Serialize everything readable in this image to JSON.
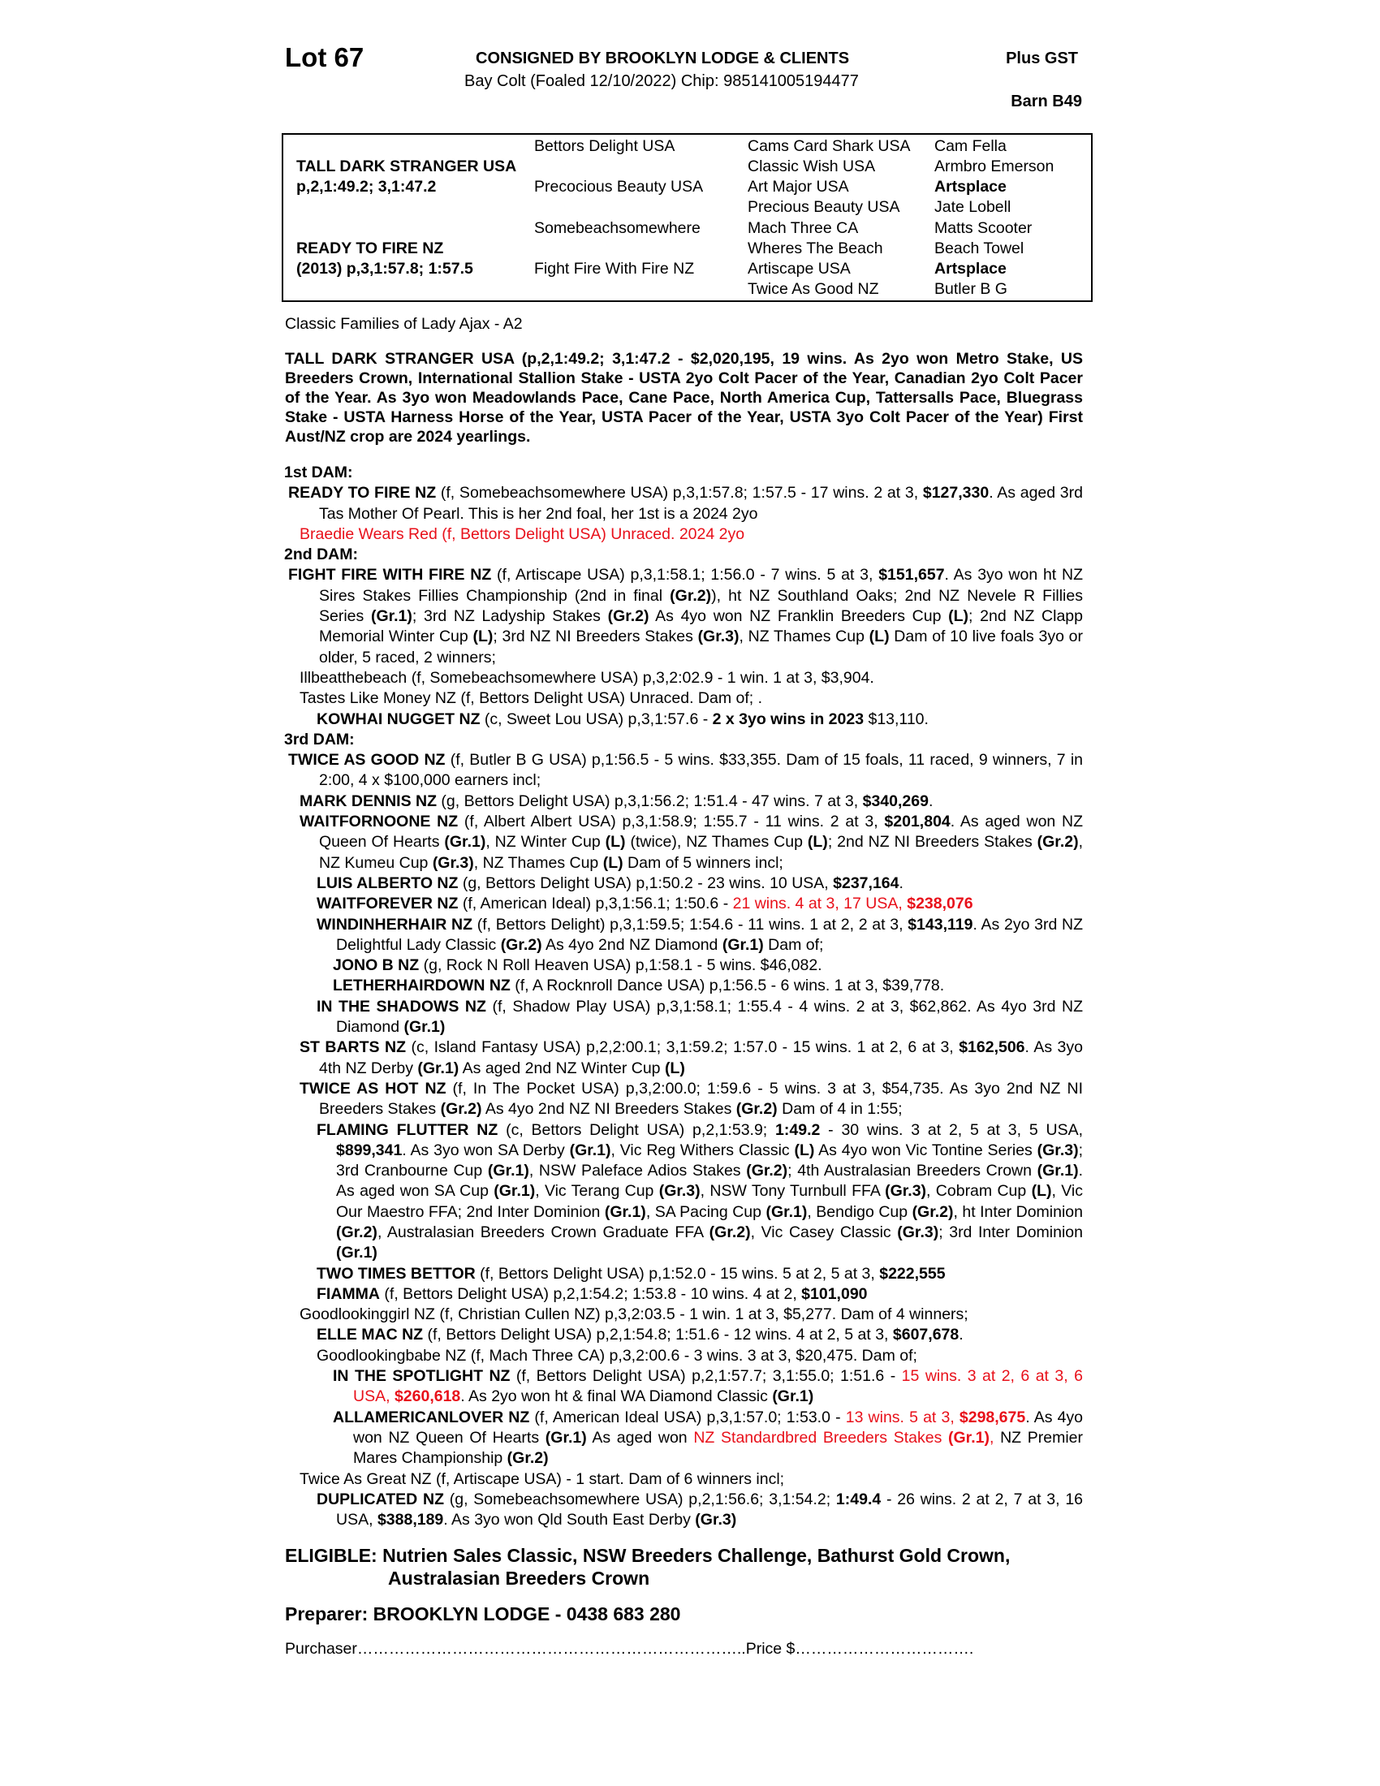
{
  "header": {
    "lot": "Lot 67",
    "consigned": "CONSIGNED BY BROOKLYN LODGE & CLIENTS",
    "plus_gst": "Plus GST",
    "description": "Bay Colt (Foaled  12/10/2022) Chip: 985141005194477",
    "barn": "Barn B49"
  },
  "pedigree": {
    "sire": "TALL DARK STRANGER USA",
    "sire_record": "p,2,1:49.2; 3,1:47.2",
    "dam": "READY TO FIRE NZ",
    "dam_record": "(2013) p,3,1:57.8; 1:57.5",
    "col2": [
      "Bettors Delight USA",
      "Precocious Beauty USA",
      "Somebeachsomewhere",
      "Fight Fire With Fire NZ"
    ],
    "col3": [
      "Cams Card Shark USA",
      "Classic Wish USA",
      "Art Major USA",
      "Precious Beauty USA",
      "Mach Three CA",
      "Wheres The Beach",
      "Artiscape USA",
      "Twice As Good NZ"
    ],
    "col4": [
      "Cam Fella",
      "Armbro Emerson",
      "Artsplace",
      "Jate Lobell",
      "Matts Scooter",
      "Beach Towel",
      "Artsplace",
      "Butler B G"
    ]
  },
  "family": "Classic Families of Lady Ajax - A2",
  "sire_paragraph": "TALL DARK STRANGER USA (p,2,1:49.2; 3,1:47.2 - $2,020,195, 19 wins. As 2yo won Metro Stake, US Breeders Crown, International Stallion Stake - USTA 2yo Colt Pacer of the Year, Canadian 2yo Colt Pacer of the Year. As 3yo won Meadowlands Pace, Cane Pace, North America Cup, Tattersalls Pace, Bluegrass Stake - USTA Harness Horse of the Year, USTA Pacer of the Year, USTA 3yo Colt Pacer of the Year) First Aust/NZ crop are 2024 yearlings.",
  "colors": {
    "highlight": "#e8101a",
    "text": "#000000"
  },
  "sections": [
    {
      "title": "1st DAM:",
      "entries": [
        {
          "level": "a",
          "segs": [
            [
              "READY TO FIRE NZ",
              "b"
            ],
            [
              " (f, Somebeachsomewhere USA) p,3,1:57.8; 1:57.5 - 17 wins. 2 at 3, ",
              ""
            ],
            [
              "$127,330",
              "b"
            ],
            [
              ". As aged 3rd Tas Mother Of Pearl. This is her 2nd foal, her 1st is a 2024 2yo",
              ""
            ]
          ]
        },
        {
          "level": "b",
          "segs": [
            [
              "Braedie Wears Red (f, Bettors Delight USA) Unraced. 2024 2yo",
              "r"
            ]
          ]
        }
      ]
    },
    {
      "title": "2nd DAM:",
      "entries": [
        {
          "level": "a",
          "segs": [
            [
              "FIGHT FIRE WITH FIRE NZ",
              "b"
            ],
            [
              " (f, Artiscape USA) p,3,1:58.1; 1:56.0 - 7 wins. 5 at 3, ",
              ""
            ],
            [
              "$151,657",
              "b"
            ],
            [
              ". As 3yo won ht NZ Sires Stakes Fillies Championship (2nd in final ",
              ""
            ],
            [
              "(Gr.2)",
              "b"
            ],
            [
              "), ht NZ Southland Oaks; 2nd NZ Nevele R Fillies Series ",
              ""
            ],
            [
              "(Gr.1)",
              "b"
            ],
            [
              "; 3rd NZ Ladyship Stakes ",
              ""
            ],
            [
              "(Gr.2)",
              "b"
            ],
            [
              " As 4yo won NZ Franklin Breeders Cup ",
              ""
            ],
            [
              "(L)",
              "b"
            ],
            [
              "; 2nd NZ Clapp Memorial Winter Cup ",
              ""
            ],
            [
              "(L)",
              "b"
            ],
            [
              "; 3rd NZ NI Breeders Stakes ",
              ""
            ],
            [
              "(Gr.3)",
              "b"
            ],
            [
              ", NZ Thames Cup ",
              ""
            ],
            [
              "(L)",
              "b"
            ],
            [
              " Dam of 10 live foals 3yo or older, 5 raced, 2 winners;",
              ""
            ]
          ]
        },
        {
          "level": "b",
          "segs": [
            [
              "Illbeatthebeach (f, Somebeachsomewhere USA) p,3,2:02.9 - 1 win. 1 at 3, $3,904.",
              ""
            ]
          ]
        },
        {
          "level": "b",
          "segs": [
            [
              "Tastes Like Money NZ (f, Bettors Delight USA) Unraced. Dam of; .",
              ""
            ]
          ]
        },
        {
          "level": "c",
          "segs": [
            [
              "KOWHAI NUGGET NZ",
              "b"
            ],
            [
              " (c, Sweet Lou USA) p,3,1:57.6 - ",
              ""
            ],
            [
              "2 x 3yo wins in 2023",
              "b"
            ],
            [
              " $13,110.",
              ""
            ]
          ]
        }
      ]
    },
    {
      "title": "3rd DAM:",
      "entries": [
        {
          "level": "a",
          "segs": [
            [
              "TWICE AS GOOD NZ",
              "b"
            ],
            [
              " (f, Butler B G USA) p,1:56.5 - 5 wins. $33,355. Dam of 15 foals, 11 raced, 9 winners, 7 in 2:00, 4 x $100,000 earners incl;",
              ""
            ]
          ]
        },
        {
          "level": "b",
          "segs": [
            [
              "MARK DENNIS NZ",
              "b"
            ],
            [
              " (g, Bettors Delight USA) p,3,1:56.2; 1:51.4 - 47 wins. 7 at 3, ",
              ""
            ],
            [
              "$340,269",
              "b"
            ],
            [
              ".",
              ""
            ]
          ]
        },
        {
          "level": "b",
          "segs": [
            [
              "WAITFORNOONE NZ",
              "b"
            ],
            [
              " (f, Albert Albert USA) p,3,1:58.9; 1:55.7 - 11 wins. 2 at 3, ",
              ""
            ],
            [
              "$201,804",
              "b"
            ],
            [
              ". As aged won NZ Queen Of Hearts ",
              ""
            ],
            [
              "(Gr.1)",
              "b"
            ],
            [
              ", NZ Winter Cup ",
              ""
            ],
            [
              "(L)",
              "b"
            ],
            [
              " (twice), NZ Thames Cup ",
              ""
            ],
            [
              "(L)",
              "b"
            ],
            [
              "; 2nd NZ NI Breeders Stakes ",
              ""
            ],
            [
              "(Gr.2)",
              "b"
            ],
            [
              ", NZ Kumeu Cup ",
              ""
            ],
            [
              "(Gr.3)",
              "b"
            ],
            [
              ", NZ Thames Cup ",
              ""
            ],
            [
              "(L)",
              "b"
            ],
            [
              " Dam of 5 winners incl;",
              ""
            ]
          ]
        },
        {
          "level": "c",
          "segs": [
            [
              "LUIS ALBERTO NZ",
              "b"
            ],
            [
              " (g, Bettors Delight USA) p,1:50.2 - 23 wins. 10 USA, ",
              ""
            ],
            [
              "$237,164",
              "b"
            ],
            [
              ".",
              ""
            ]
          ]
        },
        {
          "level": "c",
          "segs": [
            [
              "WAITFOREVER NZ",
              "b"
            ],
            [
              " (f, American Ideal) p,3,1:56.1; 1:50.6 - ",
              ""
            ],
            [
              "21 wins. 4 at 3, 17 USA, ",
              "r"
            ],
            [
              "$238,076",
              "rb"
            ]
          ]
        },
        {
          "level": "c",
          "segs": [
            [
              "WINDINHERHAIR NZ",
              "b"
            ],
            [
              " (f, Bettors Delight) p,3,1:59.5; 1:54.6 - 11 wins. 1 at 2, 2 at 3, ",
              ""
            ],
            [
              "$143,119",
              "b"
            ],
            [
              ". As 2yo 3rd NZ Delightful Lady Classic ",
              ""
            ],
            [
              "(Gr.2)",
              "b"
            ],
            [
              " As 4yo 2nd NZ Diamond ",
              ""
            ],
            [
              "(Gr.1)",
              "b"
            ],
            [
              " Dam of;",
              ""
            ]
          ]
        },
        {
          "level": "d",
          "segs": [
            [
              "JONO B NZ",
              "b"
            ],
            [
              " (g, Rock N Roll Heaven USA) p,1:58.1 - 5 wins. $46,082.",
              ""
            ]
          ]
        },
        {
          "level": "d",
          "segs": [
            [
              "LETHERHAIRDOWN NZ",
              "b"
            ],
            [
              " (f, A Rocknroll Dance USA) p,1:56.5 - 6 wins. 1 at 3, $39,778.",
              ""
            ]
          ]
        },
        {
          "level": "c",
          "segs": [
            [
              "IN THE SHADOWS NZ",
              "b"
            ],
            [
              " (f, Shadow Play USA) p,3,1:58.1; 1:55.4 - 4 wins. 2 at 3, $62,862. As 4yo 3rd NZ Diamond ",
              ""
            ],
            [
              "(Gr.1)",
              "b"
            ]
          ]
        },
        {
          "level": "b",
          "segs": [
            [
              "ST BARTS NZ",
              "b"
            ],
            [
              " (c, Island Fantasy USA) p,2,2:00.1; 3,1:59.2; 1:57.0 - 15 wins. 1 at 2, 6 at 3, ",
              ""
            ],
            [
              "$162,506",
              "b"
            ],
            [
              ". As 3yo 4th NZ Derby ",
              ""
            ],
            [
              "(Gr.1)",
              "b"
            ],
            [
              " As aged 2nd NZ Winter Cup ",
              ""
            ],
            [
              "(L)",
              "b"
            ]
          ]
        },
        {
          "level": "b",
          "segs": [
            [
              "TWICE AS HOT NZ",
              "b"
            ],
            [
              " (f, In The Pocket USA) p,3,2:00.0; 1:59.6 - 5 wins. 3 at 3, $54,735. As 3yo 2nd NZ NI Breeders Stakes ",
              ""
            ],
            [
              "(Gr.2)",
              "b"
            ],
            [
              " As 4yo 2nd NZ NI Breeders Stakes ",
              ""
            ],
            [
              "(Gr.2)",
              "b"
            ],
            [
              " Dam of 4 in 1:55;",
              ""
            ]
          ]
        },
        {
          "level": "c",
          "segs": [
            [
              "FLAMING FLUTTER NZ",
              "b"
            ],
            [
              " (c, Bettors Delight USA) p,2,1:53.9; ",
              ""
            ],
            [
              "1:49.2",
              "b"
            ],
            [
              " - 30 wins. 3 at 2, 5 at 3, 5 USA, ",
              ""
            ],
            [
              "$899,341",
              "b"
            ],
            [
              ". As 3yo won SA Derby ",
              ""
            ],
            [
              "(Gr.1)",
              "b"
            ],
            [
              ", Vic Reg Withers Classic ",
              ""
            ],
            [
              "(L)",
              "b"
            ],
            [
              " As 4yo won Vic Tontine Series ",
              ""
            ],
            [
              "(Gr.3)",
              "b"
            ],
            [
              "; 3rd Cranbourne Cup ",
              ""
            ],
            [
              "(Gr.1)",
              "b"
            ],
            [
              ", NSW Paleface Adios Stakes ",
              ""
            ],
            [
              "(Gr.2)",
              "b"
            ],
            [
              "; 4th Australasian Breeders Crown ",
              ""
            ],
            [
              "(Gr.1)",
              "b"
            ],
            [
              ". As aged won SA Cup ",
              ""
            ],
            [
              "(Gr.1)",
              "b"
            ],
            [
              ", Vic Terang Cup ",
              ""
            ],
            [
              "(Gr.3)",
              "b"
            ],
            [
              ", NSW Tony Turnbull FFA ",
              ""
            ],
            [
              "(Gr.3)",
              "b"
            ],
            [
              ", Cobram Cup ",
              ""
            ],
            [
              "(L)",
              "b"
            ],
            [
              ", Vic Our Maestro FFA; 2nd Inter Dominion ",
              ""
            ],
            [
              "(Gr.1)",
              "b"
            ],
            [
              ", SA Pacing Cup ",
              ""
            ],
            [
              "(Gr.1)",
              "b"
            ],
            [
              ", Bendigo Cup ",
              ""
            ],
            [
              "(Gr.2)",
              "b"
            ],
            [
              ", ht Inter Dominion ",
              ""
            ],
            [
              "(Gr.2)",
              "b"
            ],
            [
              ", Australasian Breeders Crown Graduate FFA ",
              ""
            ],
            [
              "(Gr.2)",
              "b"
            ],
            [
              ", Vic Casey Classic ",
              ""
            ],
            [
              "(Gr.3)",
              "b"
            ],
            [
              "; 3rd Inter Dominion ",
              ""
            ],
            [
              "(Gr.1)",
              "b"
            ]
          ]
        },
        {
          "level": "c",
          "segs": [
            [
              "TWO TIMES BETTOR",
              "b"
            ],
            [
              " (f, Bettors Delight USA) p,1:52.0 - 15 wins. 5 at 2, 5 at 3, ",
              ""
            ],
            [
              "$222,555",
              "b"
            ]
          ]
        },
        {
          "level": "c",
          "segs": [
            [
              "FIAMMA",
              "b"
            ],
            [
              " (f, Bettors Delight USA) p,2,1:54.2; 1:53.8 - 10 wins. 4 at 2, ",
              ""
            ],
            [
              "$101,090",
              "b"
            ]
          ]
        },
        {
          "level": "b",
          "segs": [
            [
              "Goodlookinggirl NZ (f, Christian Cullen NZ) p,3,2:03.5 - 1 win. 1 at 3, $5,277. Dam of 4 winners;",
              ""
            ]
          ]
        },
        {
          "level": "c",
          "segs": [
            [
              "ELLE MAC NZ",
              "b"
            ],
            [
              " (f, Bettors Delight USA) p,2,1:54.8; 1:51.6 - 12 wins. 4 at 2, 5 at 3, ",
              ""
            ],
            [
              "$607,678",
              "b"
            ],
            [
              ".",
              ""
            ]
          ]
        },
        {
          "level": "c",
          "segs": [
            [
              "Goodlookingbabe NZ (f, Mach Three CA) p,3,2:00.6 - 3 wins. 3 at 3, $20,475. Dam of;",
              ""
            ]
          ]
        },
        {
          "level": "d",
          "segs": [
            [
              "IN THE SPOTLIGHT NZ",
              "b"
            ],
            [
              " (f, Bettors Delight USA) p,2,1:57.7; 3,1:55.0; 1:51.6 - ",
              ""
            ],
            [
              "15 wins. 3 at 2, 6 at 3, 6 USA, ",
              "r"
            ],
            [
              "$260,618",
              "rb"
            ],
            [
              ". As 2yo won ht & final WA Diamond Classic ",
              ""
            ],
            [
              "(Gr.1)",
              "b"
            ]
          ]
        },
        {
          "level": "d",
          "segs": [
            [
              "ALLAMERICANLOVER NZ",
              "b"
            ],
            [
              " (f, American Ideal USA) p,3,1:57.0; 1:53.0 - ",
              ""
            ],
            [
              "13 wins. 5 at 3, ",
              "r"
            ],
            [
              "$298,675",
              "rb"
            ],
            [
              ". As 4yo won NZ Queen Of Hearts ",
              ""
            ],
            [
              "(Gr.1)",
              "b"
            ],
            [
              " As aged won ",
              ""
            ],
            [
              "NZ Standardbred Breeders Stakes ",
              "r"
            ],
            [
              "(Gr.1)",
              "rb"
            ],
            [
              ",",
              "r"
            ],
            [
              " NZ Premier Mares Championship ",
              ""
            ],
            [
              "(Gr.2)",
              "b"
            ]
          ]
        },
        {
          "level": "b",
          "segs": [
            [
              "Twice As Great NZ (f, Artiscape USA) - 1 start. Dam of 6 winners incl;",
              ""
            ]
          ]
        },
        {
          "level": "c",
          "segs": [
            [
              "DUPLICATED NZ",
              "b"
            ],
            [
              " (g, Somebeachsomewhere USA) p,2,1:56.6; 3,1:54.2; ",
              ""
            ],
            [
              "1:49.4",
              "b"
            ],
            [
              " - 26 wins. 2 at 2, 7 at 3, 16 USA, ",
              ""
            ],
            [
              "$388,189",
              "b"
            ],
            [
              ". As 3yo won Qld South East Derby ",
              ""
            ],
            [
              "(Gr.3)",
              "b"
            ]
          ]
        }
      ]
    }
  ],
  "footer": {
    "eligible_line1": "ELIGIBLE: Nutrien Sales Classic, NSW Breeders Challenge, Bathurst Gold Crown,",
    "eligible_line2": "Australasian Breeders Crown",
    "preparer": "Preparer: BROOKLYN LODGE - 0438 683 280",
    "purchaser": "Purchaser………………………………………………………………..Price $……………………………."
  }
}
